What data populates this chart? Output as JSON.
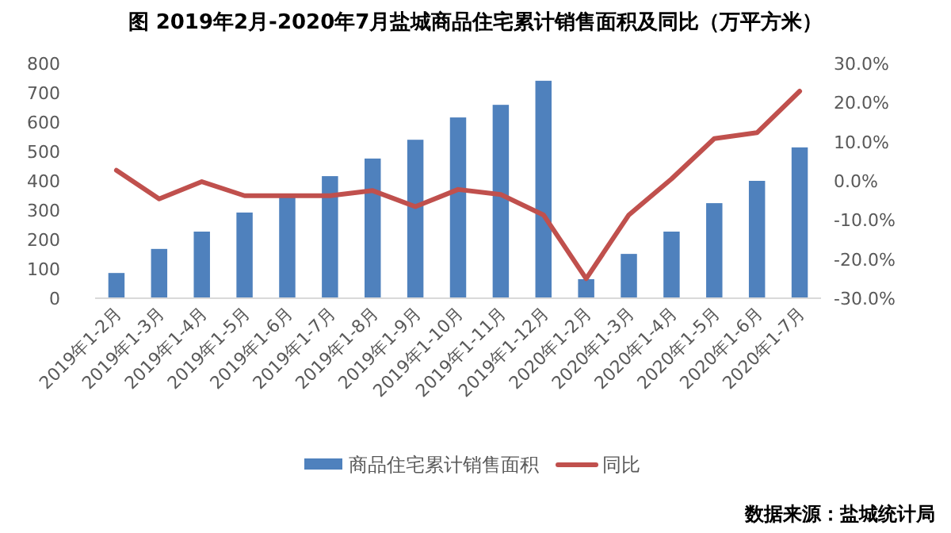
{
  "chart_data": {
    "type": "bar",
    "title": "图 2019年2月-2020年7月盐城商品住宅累计销售面积及同比（万平方米）",
    "categories": [
      "2019年1-2月",
      "2019年1-3月",
      "2019年1-4月",
      "2019年1-5月",
      "2019年1-6月",
      "2019年1-7月",
      "2019年1-8月",
      "2019年1-9月",
      "2019年1-10月",
      "2019年1-11月",
      "2019年1-12月",
      "2020年1-2月",
      "2020年1-3月",
      "2020年1-4月",
      "2020年1-5月",
      "2020年1-6月",
      "2020年1-7月"
    ],
    "series": [
      {
        "name": "商品住宅累计销售面积",
        "color": "#4f81bd",
        "values": [
          86,
          168,
          227,
          292,
          353,
          416,
          476,
          540,
          616,
          659,
          741,
          65,
          151,
          227,
          324,
          400,
          514
        ]
      },
      {
        "name": "同比",
        "type": "line",
        "axis": "y2",
        "color": "#c0504d",
        "values": [
          2.7,
          -4.6,
          -0.2,
          -3.8,
          -3.8,
          -3.8,
          -2.5,
          -6.6,
          -2.2,
          -3.5,
          -8.7,
          -25,
          -8.7,
          0.5,
          10.8,
          12.3,
          22.9
        ]
      }
    ],
    "ylim": [
      0,
      800
    ],
    "yticks": [
      0,
      100,
      200,
      300,
      400,
      500,
      600,
      700,
      800
    ],
    "y2lim": [
      -30,
      30
    ],
    "y2ticks": [
      {
        "value": -30,
        "label": "-30.0%"
      },
      {
        "value": -20,
        "label": "-20.0%"
      },
      {
        "value": -10,
        "label": "-10.0%"
      },
      {
        "value": 0,
        "label": "0.0%"
      },
      {
        "value": 10,
        "label": "10.0%"
      },
      {
        "value": 20,
        "label": "20.0%"
      },
      {
        "value": 30,
        "label": "30.0%"
      }
    ],
    "legend": "bottom",
    "annotations": [
      "数据来源：盐城统计局"
    ]
  }
}
